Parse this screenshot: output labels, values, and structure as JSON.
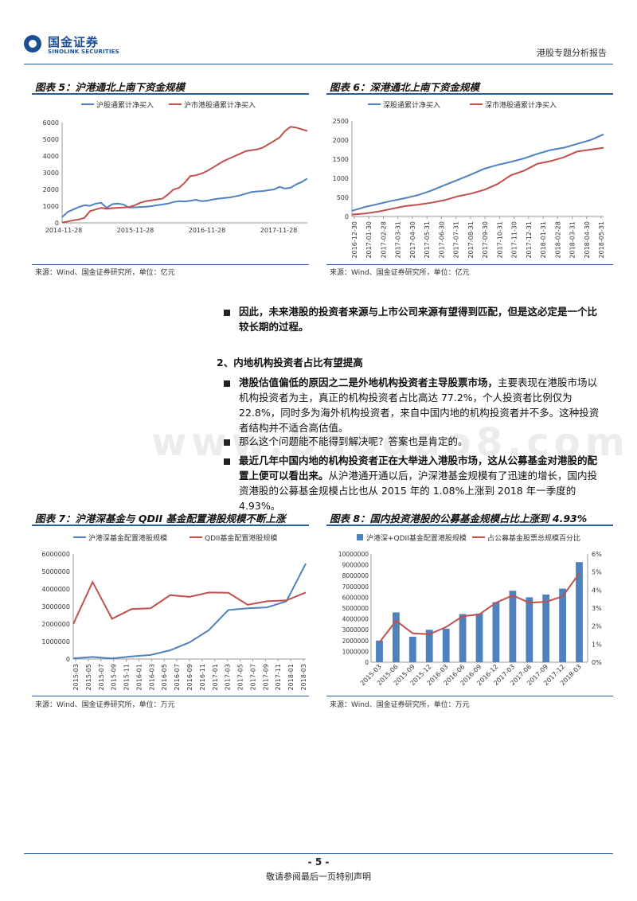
{
  "header": {
    "logo_cn": "国金证券",
    "logo_en": "SINOLINK SECURITIES",
    "report_type": "港股专题分析报告"
  },
  "fig5": {
    "title": "图表 5：沪港通北上南下资金规模",
    "source": "来源：Wind、国金证券研究所，单位：亿元",
    "chart_data": {
      "type": "line",
      "ylim": [
        0,
        6000
      ],
      "yticks": [
        "0",
        "1000",
        "2000",
        "3000",
        "4000",
        "5000",
        "6000"
      ],
      "xticks": [
        "2014-11-28",
        "2015-11-28",
        "2016-11-28",
        "2017-11-28"
      ],
      "series": [
        {
          "name": "沪股通累计净买入",
          "color": "#4f81bd",
          "values": [
            350,
            650,
            800,
            950,
            1050,
            1020,
            1150,
            1200,
            900,
            1120,
            1150,
            1100,
            920,
            930,
            950,
            960,
            1000,
            1050,
            1100,
            1150,
            1250,
            1300,
            1280,
            1320,
            1380,
            1300,
            1320,
            1400,
            1450,
            1480,
            1520,
            1580,
            1650,
            1750,
            1850,
            1880,
            1900,
            1950,
            2000,
            2150,
            2050,
            2100,
            2300,
            2450,
            2650
          ]
        },
        {
          "name": "沪市港股通累计净买入",
          "color": "#c0504d",
          "values": [
            20,
            80,
            150,
            200,
            300,
            700,
            800,
            900,
            850,
            880,
            900,
            920,
            950,
            1050,
            1200,
            1300,
            1350,
            1400,
            1450,
            1700,
            2000,
            2100,
            2400,
            2800,
            2850,
            2950,
            3100,
            3300,
            3500,
            3700,
            3850,
            4000,
            4150,
            4300,
            4350,
            4400,
            4500,
            4700,
            4900,
            5100,
            5500,
            5750,
            5700,
            5600,
            5500
          ]
        }
      ]
    }
  },
  "fig6": {
    "title": "图表 6：深港通北上南下资金规模",
    "source": "来源：Wind、国金证券研究所，单位：亿元",
    "chart_data": {
      "type": "line",
      "ylim": [
        0,
        2500
      ],
      "yticks": [
        "0",
        "500",
        "1000",
        "1500",
        "2000",
        "2500"
      ],
      "xticks": [
        "2016-12-30",
        "2017-01-30",
        "2017-02-28",
        "2017-03-31",
        "2017-04-30",
        "2017-05-31",
        "2017-06-30",
        "2017-07-31",
        "2017-08-31",
        "2017-09-30",
        "2017-10-31",
        "2017-11-30",
        "2017-12-31",
        "2018-01-31",
        "2018-02-28",
        "2018-03-31",
        "2018-04-30",
        "2018-05-31"
      ],
      "series": [
        {
          "name": "深股通累计净买入",
          "color": "#4f81bd",
          "values": [
            150,
            250,
            330,
            410,
            480,
            560,
            680,
            820,
            960,
            1100,
            1250,
            1350,
            1430,
            1520,
            1640,
            1740,
            1800,
            1900,
            2000,
            2150
          ]
        },
        {
          "name": "深市港股通累计净买入",
          "color": "#c0504d",
          "values": [
            50,
            80,
            130,
            200,
            270,
            310,
            360,
            430,
            530,
            600,
            700,
            850,
            1080,
            1200,
            1380,
            1450,
            1550,
            1700,
            1750,
            1800
          ]
        }
      ]
    }
  },
  "text": {
    "p1": "因此，未来港股的投资者来源与上市公司来源有望得到匹配，但是这必定是一个比较长期的过程。",
    "heading": "2、内地机构投资者占比有望提高",
    "p2_bold": "港股估值偏低的原因之二是外地机构投资者主导股票市场，",
    "p2_rest": "主要表现在港股市场以机构投资者为主，真正的机构投资者占比高达 77.2%，个人投资者比例仅为 22.8%，同时多为海外机构投资者，来自中国内地的机构投资者并不多。这种投资者结构并不适合高估值。",
    "p3": "那么这个问题能不能得到解决呢？答案也是肯定的。",
    "p4_bold": "最近几年中国内地的机构投资者正在大举进入港股市场，这从公募基金对港股的配置上便可以看出来。",
    "p4_rest": "从沪港通开通以后，沪深港基金规模有了迅速的增长，国内投资港股的公募基金规模占比也从 2015 年的 1.08%上涨到 2018 年一季度的 4.93%。"
  },
  "fig7": {
    "title": "图表 7：沪港深基金与 QDII 基金配置港股规模不断上涨",
    "source": "来源：Wind、国金证券研究所，单位：万元",
    "chart_data": {
      "type": "line",
      "ylim": [
        0,
        6000000
      ],
      "yticks": [
        "0",
        "1000000",
        "2000000",
        "3000000",
        "4000000",
        "5000000",
        "6000000"
      ],
      "xticks": [
        "2015-03",
        "2015-05",
        "2015-07",
        "2015-09",
        "2015-11",
        "2016-01",
        "2016-03",
        "2016-05",
        "2016-07",
        "2016-09",
        "2016-11",
        "2017-01",
        "2017-03",
        "2017-05",
        "2017-07",
        "2017-09",
        "2017-11",
        "2018-01",
        "2018-03"
      ],
      "series": [
        {
          "name": "沪港深基金配置港股规模",
          "color": "#4f81bd",
          "values": [
            40000,
            120000,
            30000,
            150000,
            230000,
            500000,
            950000,
            1650000,
            2800000,
            2900000,
            2950000,
            3300000,
            5450000
          ]
        },
        {
          "name": "QDII基金配置港股规模",
          "color": "#c0504d",
          "values": [
            2000000,
            4400000,
            2300000,
            2850000,
            2900000,
            3650000,
            3550000,
            3800000,
            3780000,
            3100000,
            3300000,
            3350000,
            3800000
          ]
        }
      ]
    }
  },
  "fig8": {
    "title": "图表 8：国内投资港股的公募基金规模占比上涨到 4.93%",
    "source": "来源：Wind、国金证券研究所，单位：万元",
    "chart_data": {
      "type": "bar",
      "ylim": [
        0,
        10000000
      ],
      "yticks": [
        "0",
        "1000000",
        "2000000",
        "3000000",
        "4000000",
        "5000000",
        "6000000",
        "7000000",
        "8000000",
        "9000000",
        "10000000"
      ],
      "y2ticks": [
        "0%",
        "1%",
        "2%",
        "3%",
        "4%",
        "5%",
        "6%"
      ],
      "categories": [
        "2015-03",
        "2015-06",
        "2015-09",
        "2015-12",
        "2016-03",
        "2016-06",
        "2016-09",
        "2016-12",
        "2017-03",
        "2017-06",
        "2017-09",
        "2017-12",
        "2018-03"
      ],
      "series": [
        {
          "name": "沪港深+QDII基金配置港股规模",
          "color": "#4f81bd",
          "values": [
            2000000,
            4600000,
            2350000,
            3000000,
            3100000,
            4450000,
            4500000,
            5550000,
            6600000,
            6000000,
            6250000,
            6800000,
            9250000
          ]
        },
        {
          "name": "占公募基金股票总规模百分比",
          "color": "#c0504d",
          "values": [
            1.1,
            2.3,
            1.6,
            1.55,
            1.95,
            2.55,
            2.65,
            3.3,
            3.7,
            3.3,
            3.35,
            3.65,
            4.93
          ]
        }
      ]
    }
  },
  "footer": {
    "page": "- 5 -",
    "note": "敬请参阅最后一页特别声明"
  },
  "watermark": "www.baogao8.com"
}
